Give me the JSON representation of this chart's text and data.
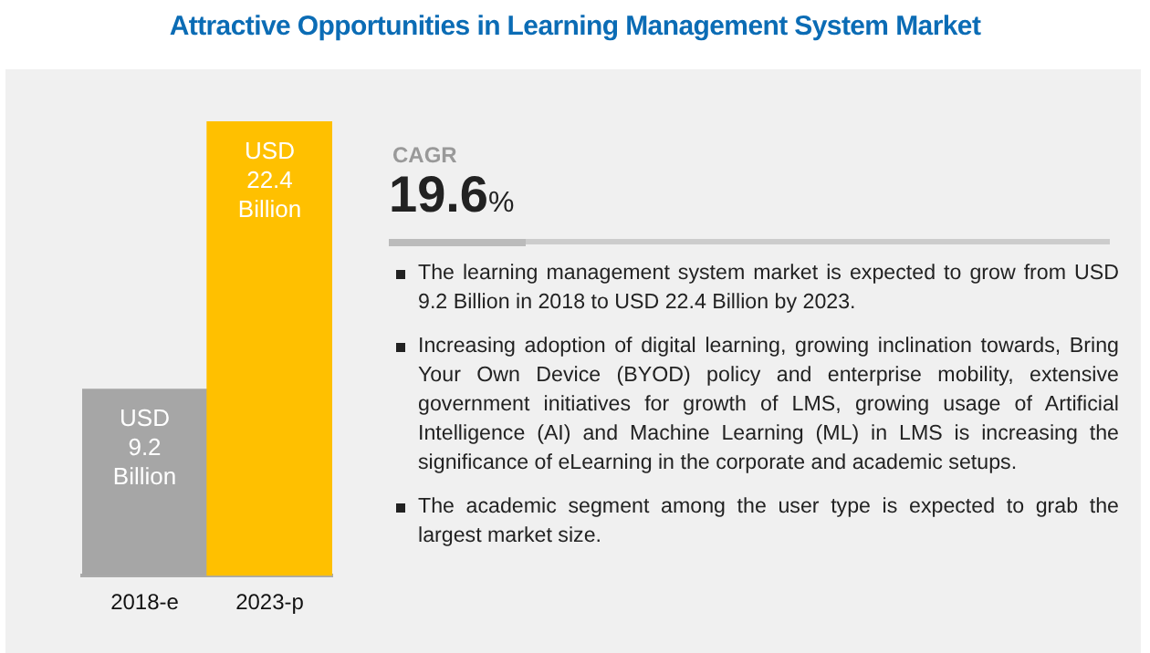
{
  "chart_data": {
    "type": "bar",
    "title": "Attractive Opportunities in Learning Management System Market",
    "categories": [
      "2018-e",
      "2023-p"
    ],
    "values": [
      9.2,
      22.4
    ],
    "colors": [
      "#a6a6a6",
      "#ffc000"
    ],
    "value_labels": [
      "USD 9.2 Billion",
      "USD 22.4 Billion"
    ],
    "tick_labels": "x",
    "annotations": [
      "CAGR",
      "19.6%",
      "The learning management system market is expected to grow from USD 9.2 Billion in 2018 to USD 22.4 Billion by 2023.",
      "Increasing adoption of digital learning, growing inclination towards, Bring Your Own Device (BYOD) policy and enterprise mobility, extensive government initiatives for growth of LMS, growing usage of Artificial Intelligence (AI) and Machine Learning (ML) in LMS is increasing the significance of eLearning in the corporate and academic setups.",
      "The academic segment among the user type is expected to grab the largest market size."
    ]
  }
}
